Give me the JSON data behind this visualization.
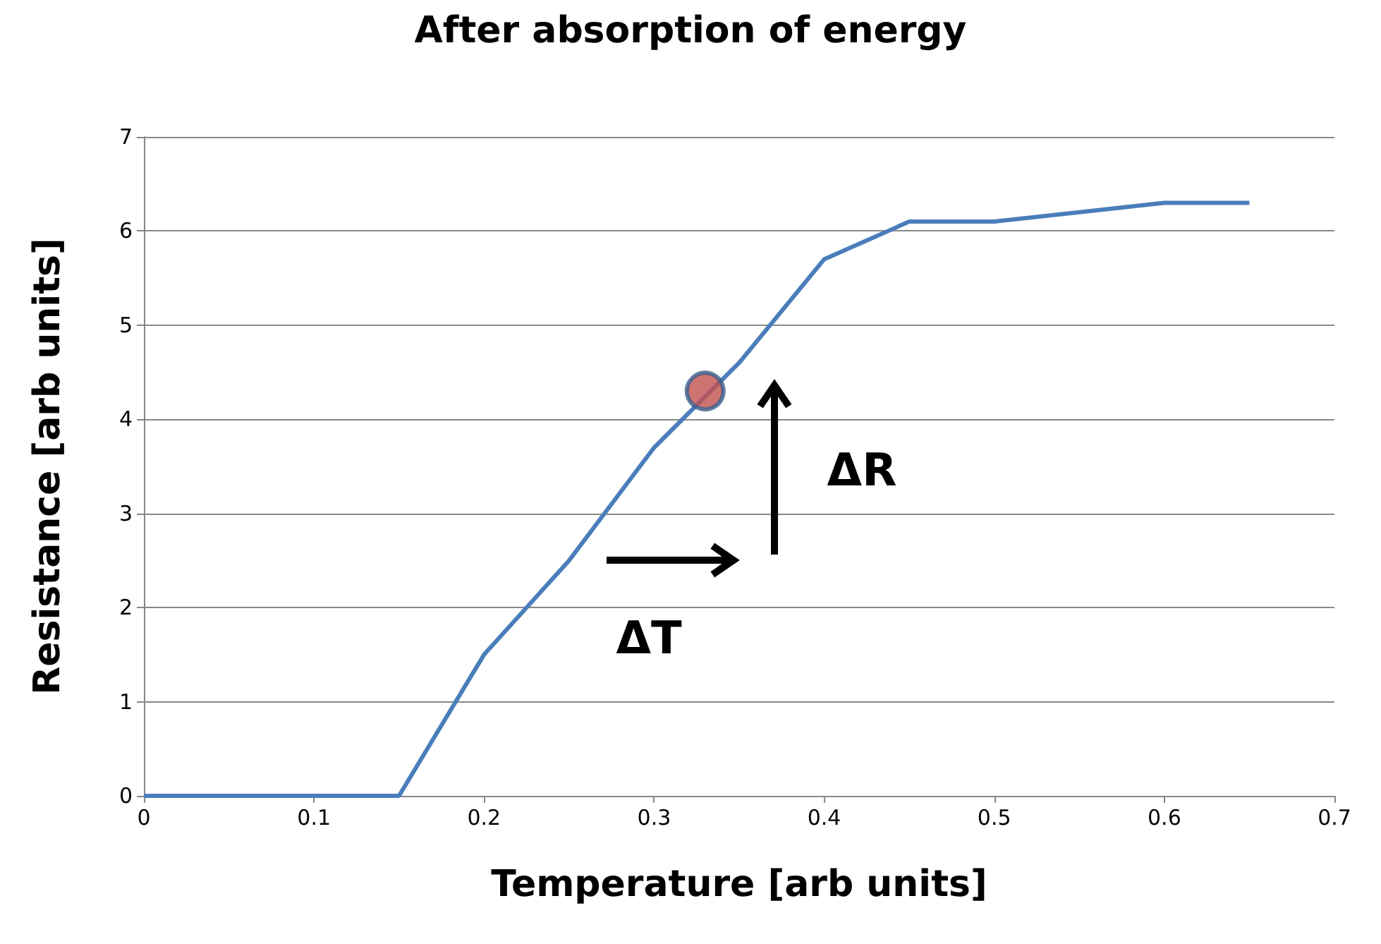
{
  "chart_data": {
    "type": "line",
    "title": "After absorption of energy",
    "xlabel": "Temperature [arb units]",
    "ylabel": "Resistance [arb units]",
    "series": [
      {
        "color": "#4a7ebb",
        "marker": "none",
        "x": [
          0,
          0.15,
          0.2,
          0.25,
          0.3,
          0.35,
          0.4,
          0.45,
          0.5,
          0.6,
          0.65
        ],
        "values": [
          0,
          0,
          1.5,
          2.5,
          3.7,
          4.6,
          5.7,
          6.1,
          6.1,
          6.3,
          6.3
        ]
      },
      {
        "type": "scatter",
        "color": "#c0504d",
        "marker": "circle",
        "x": [
          0.33
        ],
        "values": [
          4.3
        ]
      }
    ],
    "xlim": [
      0,
      0.7
    ],
    "xticks": [
      0,
      0.1,
      0.2,
      0.3,
      0.4,
      0.5,
      0.6,
      0.7
    ],
    "ylim": [
      0,
      7
    ],
    "yticks": [
      0,
      1,
      2,
      3,
      4,
      5,
      6,
      7
    ],
    "grid": "y",
    "annotations": [
      "ΔT",
      "ΔR"
    ]
  }
}
